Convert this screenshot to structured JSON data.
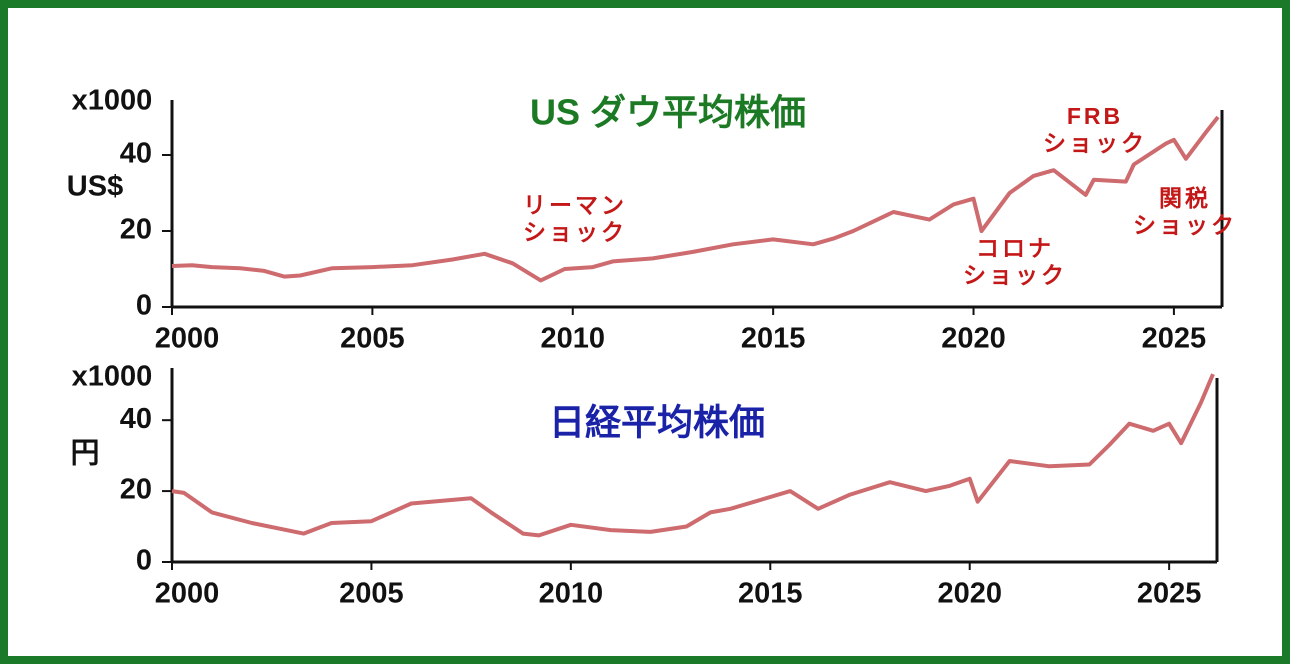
{
  "chart_data": [
    {
      "type": "line",
      "title": "US ダウ平均株価",
      "y_unit": "x1000",
      "ylabel": "US$",
      "color": "#cd6b6e",
      "x": [
        2000,
        2000.5,
        2001,
        2001.7,
        2002.3,
        2002.8,
        2003.2,
        2004,
        2005,
        2006,
        2007,
        2007.8,
        2008.5,
        2009.2,
        2009.8,
        2010.5,
        2011,
        2012,
        2013,
        2014,
        2015,
        2016,
        2016.5,
        2017,
        2018,
        2018.9,
        2019.5,
        2020,
        2020.2,
        2020.9,
        2021.5,
        2022,
        2022.8,
        2023,
        2023.8,
        2024,
        2024.8,
        2025,
        2025.3,
        2025.8,
        2026.1
      ],
      "values": [
        10.8,
        11,
        10.5,
        10.2,
        9.5,
        8.0,
        8.3,
        10.2,
        10.5,
        11.0,
        12.5,
        14.0,
        11.5,
        7.0,
        10.0,
        10.5,
        12.0,
        12.8,
        14.5,
        16.5,
        17.8,
        16.5,
        18.0,
        20.0,
        25.0,
        23.0,
        27.0,
        28.5,
        20.0,
        30.0,
        34.5,
        36.0,
        29.5,
        33.5,
        33.0,
        37.5,
        43.0,
        44.0,
        39.0,
        46.0,
        50.0
      ],
      "xlim": [
        2000,
        2026.2
      ],
      "xticks": [
        2000,
        2005,
        2010,
        2015,
        2020,
        2025
      ],
      "ylim": [
        0,
        50
      ],
      "yticks": [
        0,
        20,
        40
      ],
      "annotations": [
        [
          "リーマン",
          "ショック"
        ],
        [
          "コロナ",
          "ショック"
        ],
        [
          "FRB",
          "ショック"
        ],
        [
          "関税",
          "ショック"
        ]
      ]
    },
    {
      "type": "line",
      "title": "日経平均株価",
      "y_unit": "x1000",
      "ylabel": "円",
      "color": "#cd6b6e",
      "x": [
        2000,
        2000.3,
        2001,
        2002,
        2003.3,
        2004,
        2005,
        2006,
        2007.5,
        2008,
        2008.8,
        2009.2,
        2010,
        2011,
        2012,
        2012.9,
        2013.5,
        2014,
        2015.5,
        2016.2,
        2017,
        2018,
        2018.9,
        2019.5,
        2020,
        2020.2,
        2021,
        2022,
        2023,
        2023.5,
        2024,
        2024.6,
        2025,
        2025.3,
        2025.8,
        2026.1
      ],
      "values": [
        20,
        19.5,
        14,
        11,
        8,
        11,
        11.5,
        16.5,
        18,
        14,
        8,
        7.5,
        10.5,
        9,
        8.5,
        10,
        14,
        15,
        20,
        15,
        19,
        22.5,
        20,
        21.5,
        23.5,
        17,
        28.5,
        27,
        27.5,
        33,
        39,
        37,
        39,
        33.5,
        45,
        53
      ],
      "xlim": [
        2000,
        2026.2
      ],
      "xticks": [
        2000,
        2005,
        2010,
        2015,
        2020,
        2025
      ],
      "ylim": [
        0,
        55
      ],
      "yticks": [
        0,
        20,
        40
      ]
    }
  ]
}
